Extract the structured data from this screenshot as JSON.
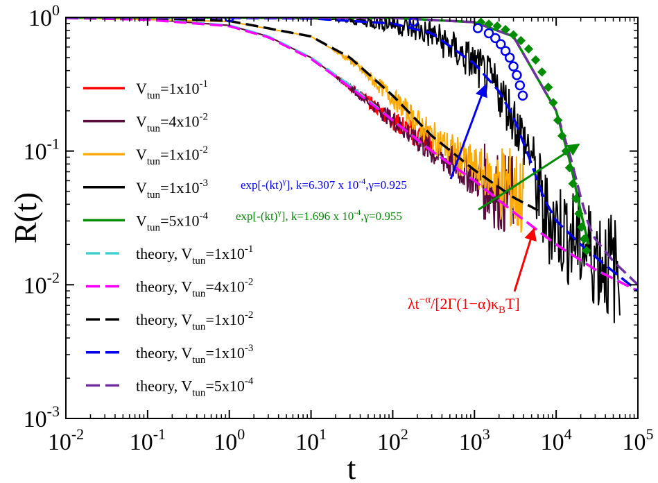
{
  "chart_data": {
    "type": "line",
    "xscale": "log",
    "yscale": "log",
    "xlabel": "t",
    "ylabel": "R(t)",
    "xlim": [
      0.01,
      100000
    ],
    "ylim": [
      0.001,
      1
    ],
    "x_ticks": [
      {
        "value": 0.01,
        "base": "10",
        "exp": "-2"
      },
      {
        "value": 0.1,
        "base": "10",
        "exp": "-1"
      },
      {
        "value": 1,
        "base": "10",
        "exp": "0"
      },
      {
        "value": 10,
        "base": "10",
        "exp": "1"
      },
      {
        "value": 100,
        "base": "10",
        "exp": "2"
      },
      {
        "value": 1000,
        "base": "10",
        "exp": "3"
      },
      {
        "value": 10000,
        "base": "10",
        "exp": "4"
      },
      {
        "value": 100000,
        "base": "10",
        "exp": "5"
      }
    ],
    "y_ticks": [
      {
        "value": 0.001,
        "base": "10",
        "exp": "-3"
      },
      {
        "value": 0.01,
        "base": "10",
        "exp": "-2"
      },
      {
        "value": 0.1,
        "base": "10",
        "exp": "-1"
      },
      {
        "value": 1,
        "base": "10",
        "exp": "0"
      }
    ],
    "legend_position": "left",
    "legend": [
      {
        "prefix": "V",
        "sub": "tun",
        "mid": "=1x10",
        "sup": "-1",
        "color": "#ff0000",
        "style": "solid"
      },
      {
        "prefix": "V",
        "sub": "tun",
        "mid": "=4x10",
        "sup": "-2",
        "color": "#5a0a3c",
        "style": "solid"
      },
      {
        "prefix": "V",
        "sub": "tun",
        "mid": "=1x10",
        "sup": "-2",
        "color": "#ffaa00",
        "style": "solid"
      },
      {
        "prefix": "V",
        "sub": "tun",
        "mid": "=1x10",
        "sup": "-3",
        "color": "#000000",
        "style": "solid"
      },
      {
        "prefix": "V",
        "sub": "tun",
        "mid": "=5x10",
        "sup": "-4",
        "color": "#008c00",
        "style": "solid"
      },
      {
        "prefix": "theory, V",
        "sub": "tun",
        "mid": "=1x10",
        "sup": "-1",
        "color": "#40d0d0",
        "style": "dashed"
      },
      {
        "prefix": "theory, V",
        "sub": "tun",
        "mid": "=4x10",
        "sup": "-2",
        "color": "#ff00ff",
        "style": "dashed"
      },
      {
        "prefix": "theory, V",
        "sub": "tun",
        "mid": "=1x10",
        "sup": "-2",
        "color": "#000000",
        "style": "dashed"
      },
      {
        "prefix": "theory, V",
        "sub": "tun",
        "mid": "=1x10",
        "sup": "-3",
        "color": "#0000ee",
        "style": "dashed"
      },
      {
        "prefix": "theory, V",
        "sub": "tun",
        "mid": "=5x10",
        "sup": "-4",
        "color": "#7030a0",
        "style": "dashed"
      }
    ],
    "series": [
      {
        "name": "V_tun=1x10^-1",
        "color": "#ff0000",
        "style": "solid",
        "noisy": true,
        "x": [
          0.01,
          0.1,
          1,
          3,
          10,
          30,
          100,
          200,
          300
        ],
        "y": [
          0.99,
          0.97,
          0.87,
          0.72,
          0.5,
          0.3,
          0.17,
          0.13,
          0.12
        ]
      },
      {
        "name": "V_tun=4x10^-2",
        "color": "#5a0a3c",
        "style": "solid",
        "noisy": true,
        "x": [
          0.01,
          0.1,
          1,
          3,
          10,
          30,
          100,
          300,
          1000,
          2000,
          3000
        ],
        "y": [
          0.99,
          0.97,
          0.87,
          0.72,
          0.5,
          0.3,
          0.17,
          0.1,
          0.065,
          0.05,
          0.045
        ]
      },
      {
        "name": "V_tun=1x10^-2",
        "color": "#ffaa00",
        "style": "solid",
        "noisy": true,
        "x": [
          0.01,
          1,
          10,
          30,
          100,
          300,
          1000,
          2000,
          3000,
          4000
        ],
        "y": [
          0.995,
          0.93,
          0.72,
          0.48,
          0.25,
          0.13,
          0.075,
          0.06,
          0.05,
          0.045
        ]
      },
      {
        "name": "V_tun=1x10^-3",
        "color": "#000000",
        "style": "solid",
        "noisy": true,
        "x": [
          0.01,
          1,
          10,
          100,
          300,
          1000,
          2000,
          3000,
          4000,
          5000,
          6000,
          7000,
          10000,
          20000,
          40000,
          60000
        ],
        "y": [
          1.0,
          0.99,
          0.98,
          0.9,
          0.75,
          0.45,
          0.28,
          0.18,
          0.12,
          0.095,
          0.05,
          0.035,
          0.028,
          0.02,
          0.015,
          0.012
        ]
      },
      {
        "name": "V_tun=5x10^-4",
        "color": "#008c00",
        "style": "solid",
        "noisy": false,
        "x": [
          0.01,
          1,
          10,
          100,
          1000,
          3000,
          10000,
          15000,
          20000,
          25000
        ],
        "y": [
          1.0,
          1.0,
          1.0,
          0.99,
          0.92,
          0.72,
          0.2,
          0.08,
          0.035,
          0.02
        ]
      },
      {
        "name": "exp fit k=1.696e-4 (markers)",
        "color": "#008c00",
        "style": "markers-diamond",
        "x": [
          1200,
          1500,
          1900,
          2400,
          3000,
          3700,
          4600,
          5600,
          6700,
          8000,
          9200,
          10500,
          11800,
          13200,
          14600,
          16000,
          17500,
          19000,
          20500,
          22000,
          23500
        ],
        "y": [
          0.92,
          0.89,
          0.86,
          0.81,
          0.74,
          0.67,
          0.58,
          0.48,
          0.39,
          0.3,
          0.23,
          0.17,
          0.13,
          0.1,
          0.075,
          0.057,
          0.044,
          0.034,
          0.027,
          0.022,
          0.018
        ]
      },
      {
        "name": "exp fit k=6.307e-4 (markers)",
        "color": "#0000ee",
        "style": "markers-circle",
        "x": [
          1,
          180,
          1100,
          1500,
          1800,
          2100,
          2400,
          2700,
          3000,
          3300,
          3600,
          3900
        ],
        "y": [
          1.0,
          0.93,
          0.83,
          0.76,
          0.7,
          0.63,
          0.56,
          0.5,
          0.43,
          0.37,
          0.31,
          0.26
        ]
      },
      {
        "name": "theory V_tun=1x10^-1",
        "color": "#40d0d0",
        "style": "dashed",
        "x": [
          0.01,
          0.1,
          1,
          3,
          10,
          30,
          100,
          300,
          1000,
          3000,
          10000,
          30000,
          100000
        ],
        "y": [
          0.99,
          0.97,
          0.87,
          0.72,
          0.5,
          0.31,
          0.17,
          0.1,
          0.06,
          0.035,
          0.02,
          0.013,
          0.009
        ]
      },
      {
        "name": "theory V_tun=4x10^-2",
        "color": "#ff00ff",
        "style": "dashed",
        "x": [
          0.01,
          0.1,
          1,
          3,
          10,
          30,
          100,
          300,
          1000,
          3000,
          10000,
          30000,
          100000
        ],
        "y": [
          0.99,
          0.96,
          0.86,
          0.71,
          0.49,
          0.3,
          0.17,
          0.1,
          0.06,
          0.035,
          0.02,
          0.013,
          0.009
        ]
      },
      {
        "name": "theory V_tun=1x10^-2",
        "color": "#000000",
        "style": "dashed",
        "x": [
          0.01,
          0.1,
          1,
          10,
          30,
          100,
          300,
          1000,
          3000,
          6000
        ],
        "y": [
          0.995,
          0.99,
          0.94,
          0.72,
          0.5,
          0.26,
          0.13,
          0.072,
          0.045,
          0.036
        ]
      },
      {
        "name": "theory V_tun=1x10^-3",
        "color": "#0000ee",
        "style": "dashed",
        "x": [
          0.01,
          1,
          10,
          100,
          300,
          1000,
          2000,
          3000,
          5000,
          7000,
          10000,
          20000,
          40000,
          100000
        ],
        "y": [
          1.0,
          0.99,
          0.98,
          0.9,
          0.76,
          0.45,
          0.28,
          0.18,
          0.08,
          0.045,
          0.03,
          0.02,
          0.014,
          0.009
        ]
      },
      {
        "name": "theory V_tun=5x10^-4",
        "color": "#7030a0",
        "style": "dashed",
        "x": [
          0.01,
          1,
          10,
          100,
          1000,
          3000,
          10000,
          15000,
          20000,
          25000,
          30000,
          50000,
          100000
        ],
        "y": [
          1.0,
          1.0,
          1.0,
          0.99,
          0.92,
          0.72,
          0.2,
          0.09,
          0.045,
          0.028,
          0.022,
          0.015,
          0.01
        ]
      }
    ],
    "annotations": [
      {
        "id": "fit-blue",
        "text_pre": "exp[-(kt)",
        "text_sup_gamma": "γ",
        "text_mid": "], k=6.307 x 10",
        "text_sup_exp": "-4",
        "text_post": ",γ=0.925",
        "color": "#0000ee"
      },
      {
        "id": "fit-green",
        "text_pre": "exp[-(kt)",
        "text_sup_gamma": "γ",
        "text_mid": "], k=1.696 x 10",
        "text_sup_exp": "-4",
        "text_post": ",γ=0.955",
        "color": "#008c00"
      },
      {
        "id": "power-law",
        "text_pre": "λt",
        "text_sup": "−α",
        "text_mid": "/[2Γ(1−α)κ",
        "text_sub": "B",
        "text_post": "T]",
        "color": "#ff0000"
      }
    ]
  }
}
